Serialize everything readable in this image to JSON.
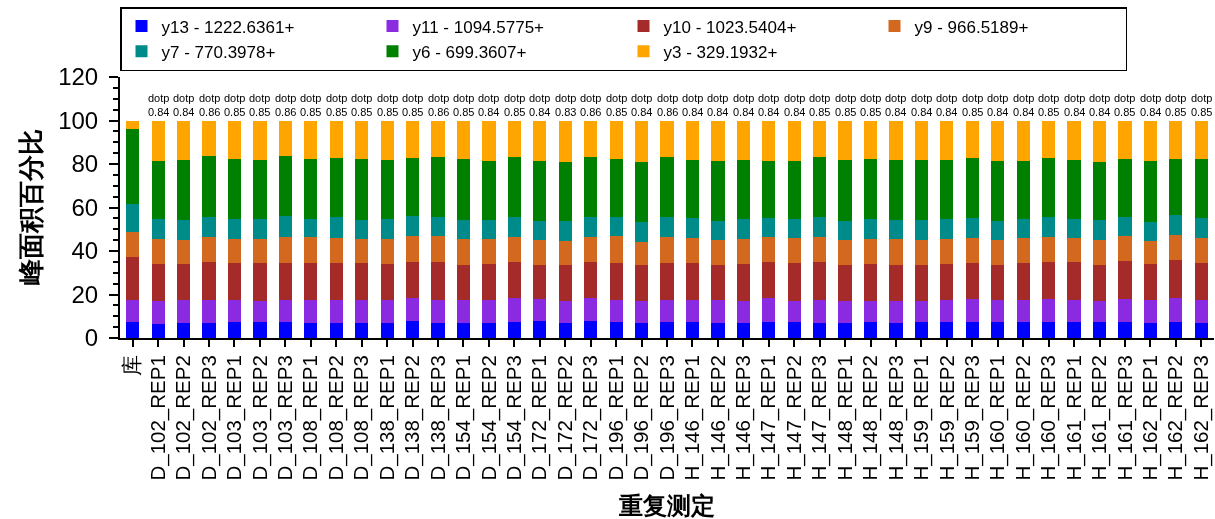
{
  "chart_data": {
    "type": "bar",
    "stacked": true,
    "categories": [
      "库",
      "D_102_REP1",
      "D_102_REP2",
      "D_102_REP3",
      "D_103_REP1",
      "D_103_REP2",
      "D_103_REP3",
      "D_108_REP1",
      "D_108_REP2",
      "D_108_REP3",
      "D_138_REP1",
      "D_138_REP2",
      "D_138_REP3",
      "D_154_REP1",
      "D_154_REP2",
      "D_154_REP3",
      "D_172_REP1",
      "D_172_REP2",
      "D_172_REP3",
      "D_196_REP1",
      "D_196_REP2",
      "D_196_REP3",
      "H_146_REP1",
      "H_146_REP2",
      "H_146_REP3",
      "H_147_REP1",
      "H_147_REP2",
      "H_147_REP3",
      "H_148_REP1",
      "H_148_REP2",
      "H_148_REP3",
      "H_159_REP1",
      "H_159_REP2",
      "H_159_REP3",
      "H_160_REP1",
      "H_160_REP2",
      "H_160_REP3",
      "H_161_REP1",
      "H_161_REP2",
      "H_161_REP3",
      "H_162_REP1",
      "H_162_REP2",
      "H_162_REP3"
    ],
    "series": [
      {
        "name": "y13 - 1222.6361+",
        "color": "#0000ff",
        "values": [
          7.4,
          6.6,
          6.9,
          6.9,
          7.4,
          7.4,
          7.4,
          6.9,
          6.9,
          7.1,
          7.1,
          7.7,
          7.1,
          7.1,
          7.1,
          7.4,
          7.7,
          6.9,
          7.7,
          7.4,
          6.9,
          7.4,
          7.4,
          7.1,
          7.1,
          7.4,
          7.4,
          6.9,
          6.9,
          7.4,
          7.1,
          7.4,
          7.4,
          7.4,
          7.4,
          7.4,
          7.4,
          7.4,
          7.4,
          7.4,
          6.9,
          7.4,
          7.1
        ]
      },
      {
        "name": "y11 - 1094.5775+",
        "color": "#8a2be2",
        "values": [
          10.3,
          10.3,
          10.8,
          10.5,
          10.3,
          9.8,
          10.3,
          10.8,
          10.8,
          10.6,
          10.6,
          10.5,
          10.6,
          10.3,
          10.2,
          10.8,
          10.2,
          10.3,
          10.5,
          10.3,
          10.0,
          10.3,
          10.3,
          10.3,
          9.7,
          11.2,
          9.8,
          10.8,
          10.0,
          9.8,
          9.8,
          9.8,
          10.0,
          10.5,
          10.0,
          10.0,
          10.5,
          10.0,
          9.8,
          10.5,
          10.5,
          10.8,
          10.3
        ]
      },
      {
        "name": "y10 - 1023.5404+",
        "color": "#a52a2a",
        "values": [
          19.7,
          16.9,
          16.5,
          17.4,
          16.6,
          17.1,
          16.8,
          16.9,
          16.9,
          16.8,
          16.5,
          16.9,
          17.4,
          16.2,
          16.8,
          16.9,
          15.8,
          16.5,
          16.9,
          16.9,
          16.8,
          16.9,
          16.9,
          16.3,
          17.2,
          16.2,
          17.4,
          17.1,
          16.8,
          16.9,
          16.8,
          16.5,
          16.6,
          16.8,
          16.3,
          16.9,
          17.2,
          17.4,
          16.3,
          17.4,
          16.5,
          17.5,
          17.2
        ]
      },
      {
        "name": "y9 - 966.5189+",
        "color": "#d2691e",
        "values": [
          11.2,
          11.5,
          10.8,
          11.5,
          11.1,
          11.2,
          12.0,
          11.7,
          11.5,
          11.1,
          11.4,
          11.7,
          11.7,
          11.8,
          11.4,
          11.4,
          11.2,
          11.1,
          11.4,
          12.2,
          10.3,
          11.8,
          11.2,
          11.4,
          11.4,
          11.5,
          11.2,
          11.5,
          11.4,
          11.4,
          11.8,
          11.4,
          11.5,
          11.5,
          11.2,
          11.7,
          11.4,
          11.1,
          11.5,
          11.7,
          10.8,
          11.7,
          11.5
        ]
      },
      {
        "name": "y7 - 770.3978+",
        "color": "#008b8b",
        "values": [
          12.8,
          9.4,
          9.2,
          9.2,
          9.4,
          9.2,
          9.4,
          8.5,
          9.4,
          8.6,
          9.2,
          9.1,
          8.8,
          8.9,
          8.9,
          9.1,
          8.9,
          9.1,
          9.1,
          8.8,
          9.5,
          9.1,
          9.2,
          8.8,
          9.2,
          8.8,
          8.8,
          9.2,
          8.8,
          9.1,
          8.8,
          9.2,
          9.2,
          9.1,
          8.9,
          8.8,
          9.1,
          8.9,
          9.2,
          8.8,
          8.5,
          9.1,
          8.9
        ]
      },
      {
        "name": "y6 - 699.3607+",
        "color": "#008000",
        "values": [
          34.5,
          26.5,
          27.5,
          28.3,
          27.4,
          27.2,
          28.0,
          27.7,
          27.4,
          28.2,
          27.1,
          26.8,
          27.7,
          28.0,
          26.8,
          27.4,
          27.8,
          26.8,
          27.7,
          26.9,
          27.5,
          27.8,
          26.8,
          27.7,
          27.2,
          26.2,
          26.6,
          27.7,
          28.0,
          27.7,
          27.4,
          27.4,
          27.2,
          27.5,
          27.4,
          26.6,
          27.1,
          27.1,
          26.9,
          26.6,
          28.3,
          26.0,
          27.2
        ]
      },
      {
        "name": "y3 - 329.1932+",
        "color": "#ffa500",
        "values": [
          4.1,
          18.8,
          18.3,
          16.2,
          17.8,
          18.1,
          16.1,
          17.5,
          17.1,
          17.6,
          18.1,
          17.3,
          16.7,
          17.7,
          18.8,
          17.0,
          18.4,
          19.3,
          16.7,
          17.5,
          19.0,
          16.7,
          18.2,
          18.4,
          18.2,
          18.7,
          18.8,
          16.8,
          18.1,
          17.7,
          18.3,
          18.3,
          18.1,
          17.2,
          18.8,
          18.6,
          17.3,
          18.1,
          18.9,
          17.6,
          18.5,
          17.5,
          17.8
        ]
      }
    ],
    "ylim": [
      0,
      120
    ],
    "yticks": [
      0,
      {
        "value": 5,
        "label": null
      },
      {
        "value": 10,
        "label": null
      },
      {
        "value": 15,
        "label": null
      },
      20,
      {
        "value": 25,
        "label": null
      },
      {
        "value": 30,
        "label": null
      },
      {
        "value": 35,
        "label": null
      },
      40,
      {
        "value": 45,
        "label": null
      },
      {
        "value": 50,
        "label": null
      },
      {
        "value": 55,
        "label": null
      },
      60,
      {
        "value": 65,
        "label": null
      },
      {
        "value": 70,
        "label": null
      },
      {
        "value": 75,
        "label": null
      },
      80,
      {
        "value": 85,
        "label": null
      },
      {
        "value": 90,
        "label": null
      },
      {
        "value": 95,
        "label": null
      },
      100,
      {
        "value": 105,
        "label": null
      },
      {
        "value": 110,
        "label": null
      },
      {
        "value": 115,
        "label": null
      },
      120
    ],
    "xlabel": "重复测定",
    "ylabel": "峰面积百分比",
    "legend": "top",
    "annotations": [
      {
        "text": "dotp\n0.84",
        "x": "D_102_REP1",
        "y": 100
      },
      {
        "text": "dotp\n0.84",
        "x": "D_102_REP2",
        "y": 100
      },
      {
        "text": "dotp\n0.86",
        "x": "D_102_REP3",
        "y": 100
      },
      {
        "text": "dotp\n0.85",
        "x": "D_103_REP1",
        "y": 100
      },
      {
        "text": "dotp\n0.85",
        "x": "D_103_REP2",
        "y": 100
      },
      {
        "text": "dotp\n0.86",
        "x": "D_103_REP3",
        "y": 100
      },
      {
        "text": "dotp\n0.85",
        "x": "D_108_REP1",
        "y": 100
      },
      {
        "text": "dotp\n0.85",
        "x": "D_108_REP2",
        "y": 100
      },
      {
        "text": "dotp\n0.85",
        "x": "D_108_REP3",
        "y": 100
      },
      {
        "text": "dotp\n0.85",
        "x": "D_138_REP1",
        "y": 100
      },
      {
        "text": "dotp\n0.85",
        "x": "D_138_REP2",
        "y": 100
      },
      {
        "text": "dotp\n0.86",
        "x": "D_138_REP3",
        "y": 100
      },
      {
        "text": "dotp\n0.85",
        "x": "D_154_REP1",
        "y": 100
      },
      {
        "text": "dotp\n0.84",
        "x": "D_154_REP2",
        "y": 100
      },
      {
        "text": "dotp\n0.85",
        "x": "D_154_REP3",
        "y": 100
      },
      {
        "text": "dotp\n0.84",
        "x": "D_172_REP1",
        "y": 100
      },
      {
        "text": "dotp\n0.83",
        "x": "D_172_REP2",
        "y": 100
      },
      {
        "text": "dotp\n0.86",
        "x": "D_172_REP3",
        "y": 100
      },
      {
        "text": "dotp\n0.85",
        "x": "D_196_REP1",
        "y": 100
      },
      {
        "text": "dotp\n0.84",
        "x": "D_196_REP2",
        "y": 100
      },
      {
        "text": "dotp\n0.86",
        "x": "D_196_REP3",
        "y": 100
      },
      {
        "text": "dotp\n0.84",
        "x": "H_146_REP1",
        "y": 100
      },
      {
        "text": "dotp\n0.84",
        "x": "H_146_REP2",
        "y": 100
      },
      {
        "text": "dotp\n0.84",
        "x": "H_146_REP3",
        "y": 100
      },
      {
        "text": "dotp\n0.84",
        "x": "H_147_REP1",
        "y": 100
      },
      {
        "text": "dotp\n0.84",
        "x": "H_147_REP2",
        "y": 100
      },
      {
        "text": "dotp\n0.85",
        "x": "H_147_REP3",
        "y": 100
      },
      {
        "text": "dotp\n0.85",
        "x": "H_148_REP1",
        "y": 100
      },
      {
        "text": "dotp\n0.85",
        "x": "H_148_REP2",
        "y": 100
      },
      {
        "text": "dotp\n0.84",
        "x": "H_148_REP3",
        "y": 100
      },
      {
        "text": "dotp\n0.84",
        "x": "H_159_REP1",
        "y": 100
      },
      {
        "text": "dotp\n0.84",
        "x": "H_159_REP2",
        "y": 100
      },
      {
        "text": "dotp\n0.85",
        "x": "H_159_REP3",
        "y": 100
      },
      {
        "text": "dotp\n0.84",
        "x": "H_160_REP1",
        "y": 100
      },
      {
        "text": "dotp\n0.84",
        "x": "H_160_REP2",
        "y": 100
      },
      {
        "text": "dotp\n0.85",
        "x": "H_160_REP3",
        "y": 100
      },
      {
        "text": "dotp\n0.84",
        "x": "H_161_REP1",
        "y": 100
      },
      {
        "text": "dotp\n0.84",
        "x": "H_161_REP2",
        "y": 100
      },
      {
        "text": "dotp\n0.85",
        "x": "H_161_REP3",
        "y": 100
      },
      {
        "text": "dotp\n0.84",
        "x": "H_162_REP1",
        "y": 100
      },
      {
        "text": "dotp\n0.85",
        "x": "H_162_REP2",
        "y": 100
      },
      {
        "text": "dotp\n0.85",
        "x": "H_162_REP3",
        "y": 100
      }
    ]
  }
}
